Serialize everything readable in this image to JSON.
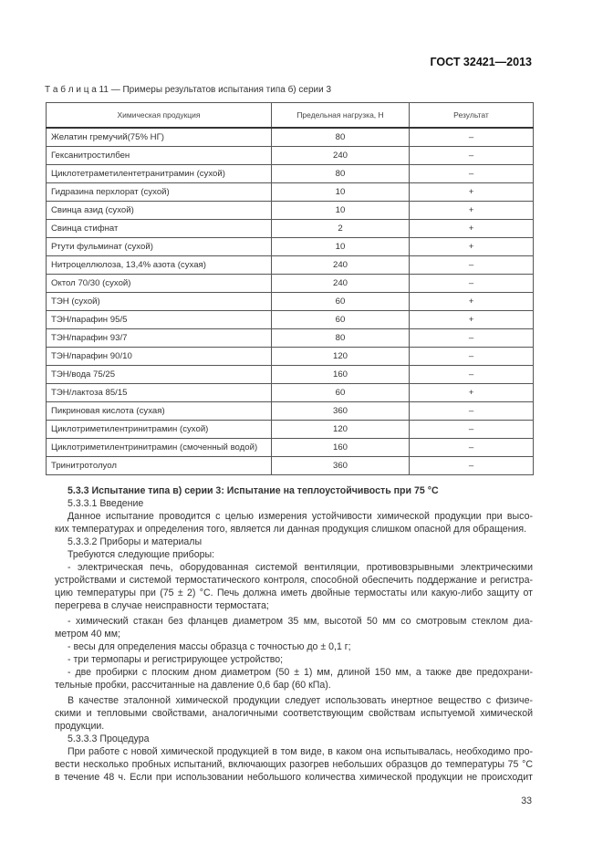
{
  "header": {
    "doc_id": "ГОСТ 32421—2013"
  },
  "table": {
    "caption": "Т а б л и ц а 11 — Примеры результатов испытания типа б) серии 3",
    "columns": [
      "Химическая продукция",
      "Предельная нагрузка, Н",
      "Результат"
    ],
    "rows": [
      [
        "Желатин гремучий(75% НГ)",
        "80",
        "–"
      ],
      [
        "Гексанитростилбен",
        "240",
        "–"
      ],
      [
        "Циклотетраметилентетранитрамин (сухой)",
        "80",
        "–"
      ],
      [
        "Гидразина перхлорат (сухой)",
        "10",
        "+"
      ],
      [
        "Свинца азид (сухой)",
        "10",
        "+"
      ],
      [
        "Свинца стифнат",
        "2",
        "+"
      ],
      [
        "Ртути фульминат (сухой)",
        "10",
        "+"
      ],
      [
        "Нитроцеллюлоза, 13,4% азота (сухая)",
        "240",
        "–"
      ],
      [
        "Октол 70/30 (сухой)",
        "240",
        "–"
      ],
      [
        "ТЭН (сухой)",
        "60",
        "+"
      ],
      [
        "ТЭН/парафин 95/5",
        "60",
        "+"
      ],
      [
        "ТЭН/парафин 93/7",
        "80",
        "–"
      ],
      [
        "ТЭН/парафин 90/10",
        "120",
        "–"
      ],
      [
        "ТЭН/вода 75/25",
        "160",
        "–"
      ],
      [
        "ТЭН/лактоза 85/15",
        "60",
        "+"
      ],
      [
        "Пикриновая кислота (сухая)",
        "360",
        "–"
      ],
      [
        "Циклотриметилентринитрамин (сухой)",
        "120",
        "–"
      ],
      [
        "Циклотриметилентринитрамин (смоченный водой)",
        "160",
        "–"
      ],
      [
        "Тринитротолуол",
        "360",
        "–"
      ]
    ]
  },
  "body": {
    "lines": [
      "5.3.3 Испытание типа в) серии 3: Испытание на теплоустойчивость при 75 °С",
      "5.3.3.1 Введение",
      "Данное испытание проводится с целью измерения устойчивости химической продукции при высо-",
      "ких температурах и определения того, является ли данная продукция слишком опасной для обращения.",
      "5.3.3.2 Приборы и материалы",
      "Требуются следующие приборы:",
      "- электрическая печь, оборудованная системой вентиляции, противовзрывными электрическими",
      "устройствами и системой термостатического контроля, способной обеспечить поддержание и регистра-",
      "цию температуры при (75 ± 2) °С. Печь должна иметь двойные термостаты или какую-либо защиту от",
      "перегрева в случае неисправности термостата;",
      "- химический стакан без фланцев диаметром 35 мм, высотой 50 мм со смотровым стеклом диа-",
      "метром 40 мм;",
      "- весы для определения массы образца с точностью до ± 0,1 г;",
      "- три термопары и регистрирующее устройство;",
      "- две пробирки с плоским дном диаметром (50 ± 1) мм, длиной 150 мм, а также две предохрани-",
      "тельные пробки, рассчитанные на давление 0,6 бар (60 кПа).",
      "В качестве эталонной химической продукции следует использовать инертное вещество с физиче-",
      "скими и тепловыми свойствами, аналогичными соответствующим свойствам испытуемой химической",
      "продукции.",
      "5.3.3.3 Процедура",
      "При работе с новой химической продукцией в том виде, в каком она испытывалась, необходимо про-",
      "вести несколько пробных испытаний, включающих разогрев небольших образцов до температуры 75 °С",
      "в течение 48 ч. Если при использовании небольшого количества химической продукции не происходит"
    ]
  },
  "footer": {
    "page_number": "33"
  }
}
